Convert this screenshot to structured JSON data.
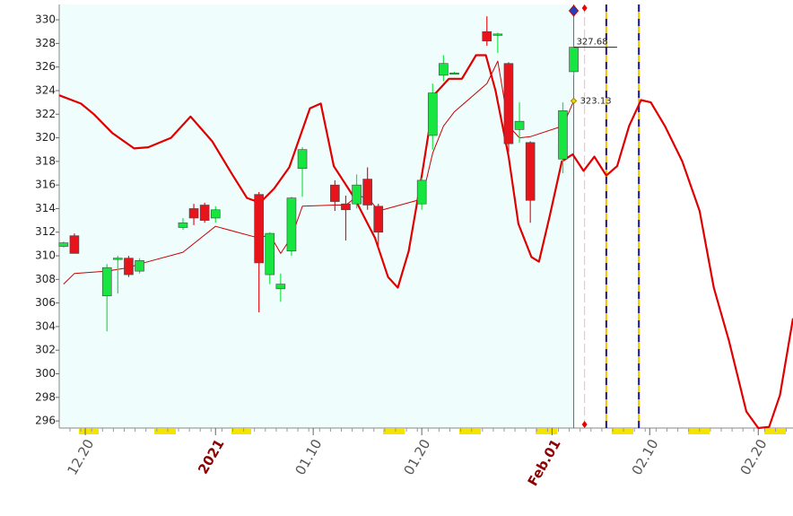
{
  "chart_data": {
    "type": "candlestick",
    "x": [
      18,
      19,
      22,
      23,
      24,
      25,
      29,
      30,
      31,
      32,
      36,
      37,
      38,
      39,
      40,
      43,
      44,
      45,
      46,
      47,
      51,
      52,
      53,
      54,
      57,
      58,
      59,
      60,
      61,
      64,
      65
    ],
    "open": [
      310.8,
      311.7,
      306.6,
      309.8,
      309.8,
      308.7,
      312.4,
      314.0,
      314.3,
      313.2,
      315.2,
      308.4,
      307.2,
      310.4,
      317.4,
      316.0,
      314.4,
      314.4,
      316.5,
      314.2,
      314.4,
      320.2,
      325.3,
      325.5,
      329.0,
      328.8,
      326.3,
      320.7,
      319.6,
      318.2,
      325.6
    ],
    "high": [
      311.2,
      311.9,
      309.3,
      310.0,
      310.0,
      309.8,
      313.2,
      314.4,
      314.5,
      314.2,
      315.4,
      312.0,
      308.5,
      315.0,
      319.2,
      316.4,
      315.1,
      316.9,
      317.5,
      314.4,
      316.6,
      324.6,
      327.0,
      325.6,
      330.3,
      328.9,
      326.4,
      323.0,
      319.7,
      323.0,
      327.8
    ],
    "low": [
      310.7,
      310.2,
      303.6,
      306.8,
      308.2,
      308.5,
      312.2,
      312.6,
      312.8,
      312.8,
      305.2,
      307.6,
      306.1,
      310.0,
      315.0,
      313.8,
      311.3,
      314.0,
      313.9,
      310.6,
      313.9,
      319.0,
      324.8,
      325.4,
      327.8,
      327.2,
      318.8,
      319.6,
      312.8,
      317.0,
      325.3
    ],
    "close": [
      311.1,
      310.2,
      309.0,
      309.8,
      308.4,
      309.6,
      312.8,
      313.2,
      313.0,
      313.9,
      309.4,
      311.9,
      307.6,
      314.9,
      319.0,
      314.6,
      313.9,
      316.0,
      314.3,
      312.0,
      316.4,
      323.8,
      326.3,
      325.5,
      328.2,
      328.8,
      319.5,
      321.4,
      314.7,
      322.3,
      327.68
    ],
    "up_color": "#17e640",
    "down_color": "#e8141c",
    "average": {
      "color": "#cc0000",
      "x": [
        18,
        19,
        22,
        24,
        25,
        29,
        32,
        36,
        37,
        38,
        39,
        40,
        43,
        44,
        45,
        46,
        47,
        51,
        52,
        53,
        54,
        57,
        58,
        59,
        60,
        61,
        64,
        65
      ],
      "values": [
        307.6,
        308.5,
        308.7,
        309.0,
        309.3,
        310.3,
        312.5,
        311.5,
        311.8,
        310.2,
        311.6,
        314.2,
        314.3,
        314.3,
        315.0,
        315.0,
        313.8,
        314.8,
        318.7,
        321.0,
        322.2,
        324.6,
        326.5,
        321.0,
        320.0,
        320.1,
        321.0,
        323.13
      ]
    },
    "cycle": {
      "color": "#e00000",
      "x": [
        17.6,
        19.6,
        20.8,
        22.5,
        24.5,
        25.8,
        27.9,
        29.7,
        31.7,
        33.6,
        34.9,
        36.1,
        37.4,
        38.8,
        40.7,
        41.7,
        42.9,
        44.8,
        46.7,
        47.9,
        48.8,
        49.8,
        51.0,
        52.2,
        53.5,
        54.7,
        56.0,
        56.9,
        57.8,
        59.0,
        59.9,
        61.1,
        61.8,
        62.8,
        63.9,
        64.9,
        65.9,
        66.9,
        68.0,
        69.0,
        70.1,
        71.2,
        72.1,
        73.4,
        75.0,
        76.6,
        77.9,
        79.3,
        80.9,
        82.0,
        83.0,
        84.0,
        85.2
      ],
      "values": [
        323.6,
        322.9,
        322.0,
        320.4,
        319.1,
        319.2,
        320.0,
        321.8,
        319.7,
        316.8,
        314.9,
        314.5,
        315.7,
        317.5,
        322.5,
        322.9,
        317.6,
        314.9,
        311.5,
        308.2,
        307.3,
        310.4,
        316.8,
        323.7,
        325.0,
        325.0,
        327.0,
        327.0,
        324.0,
        318.4,
        312.7,
        309.9,
        309.5,
        313.4,
        318.0,
        318.6,
        317.2,
        318.4,
        316.8,
        317.6,
        321.0,
        323.2,
        323.0,
        321.0,
        318.0,
        313.8,
        307.3,
        302.8,
        296.8,
        295.4,
        295.5,
        298.2,
        304.7
      ]
    },
    "annotations": [
      327.68,
      323.13
    ],
    "vlines": [
      65,
      66,
      68,
      71
    ],
    "xlim": [
      17.6,
      85.2
    ],
    "xticks": [
      {
        "value": 20,
        "label": "12.20"
      },
      {
        "value": 32,
        "label": "2021"
      },
      {
        "value": 41,
        "label": "01.10"
      },
      {
        "value": 51,
        "label": "01.20"
      },
      {
        "value": 63,
        "label": "Feb.01"
      },
      {
        "value": 72,
        "label": "02.10"
      },
      {
        "value": 82,
        "label": "02.20"
      }
    ],
    "ylim": [
      295.4,
      331.3
    ],
    "yticks": [
      296,
      298,
      300,
      302,
      304,
      306,
      308,
      310,
      312,
      314,
      316,
      318,
      320,
      322,
      324,
      326,
      328,
      330
    ]
  }
}
